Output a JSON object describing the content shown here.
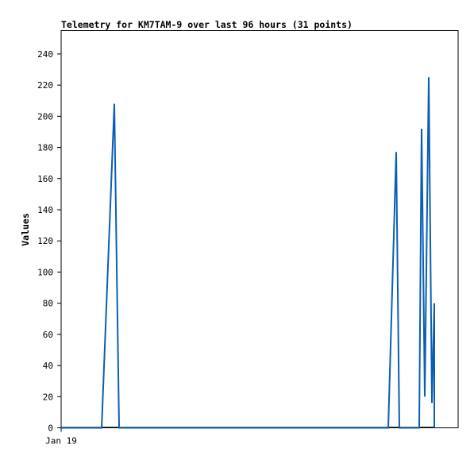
{
  "chart_data": {
    "type": "line",
    "title": "Telemetry for KM7TAM-9 over last 96 hours (31 points)",
    "ylabel": "Values",
    "xlabel": "",
    "x_tick_labels": [
      "Jan 19"
    ],
    "y_ticks": [
      0,
      20,
      40,
      60,
      80,
      100,
      120,
      140,
      160,
      180,
      200,
      220,
      240
    ],
    "ylim": [
      0,
      255
    ],
    "xlim": [
      0,
      100
    ],
    "grid": false,
    "legend": "none",
    "color": "#0a5fb4",
    "series": [
      {
        "points": [
          {
            "x": 0,
            "y": 0
          },
          {
            "x": 10.2,
            "y": 0
          },
          {
            "x": 13.4,
            "y": 208
          },
          {
            "x": 14.6,
            "y": 0
          },
          {
            "x": 82.4,
            "y": 0
          },
          {
            "x": 84.4,
            "y": 177
          },
          {
            "x": 85.2,
            "y": 0
          },
          {
            "x": 90.2,
            "y": 0
          },
          {
            "x": 90.8,
            "y": 192
          },
          {
            "x": 91.6,
            "y": 20
          },
          {
            "x": 92.6,
            "y": 225
          },
          {
            "x": 93.4,
            "y": 16
          },
          {
            "x": 94.0,
            "y": 80
          },
          {
            "x": 94.0,
            "y": 0
          }
        ]
      }
    ]
  }
}
